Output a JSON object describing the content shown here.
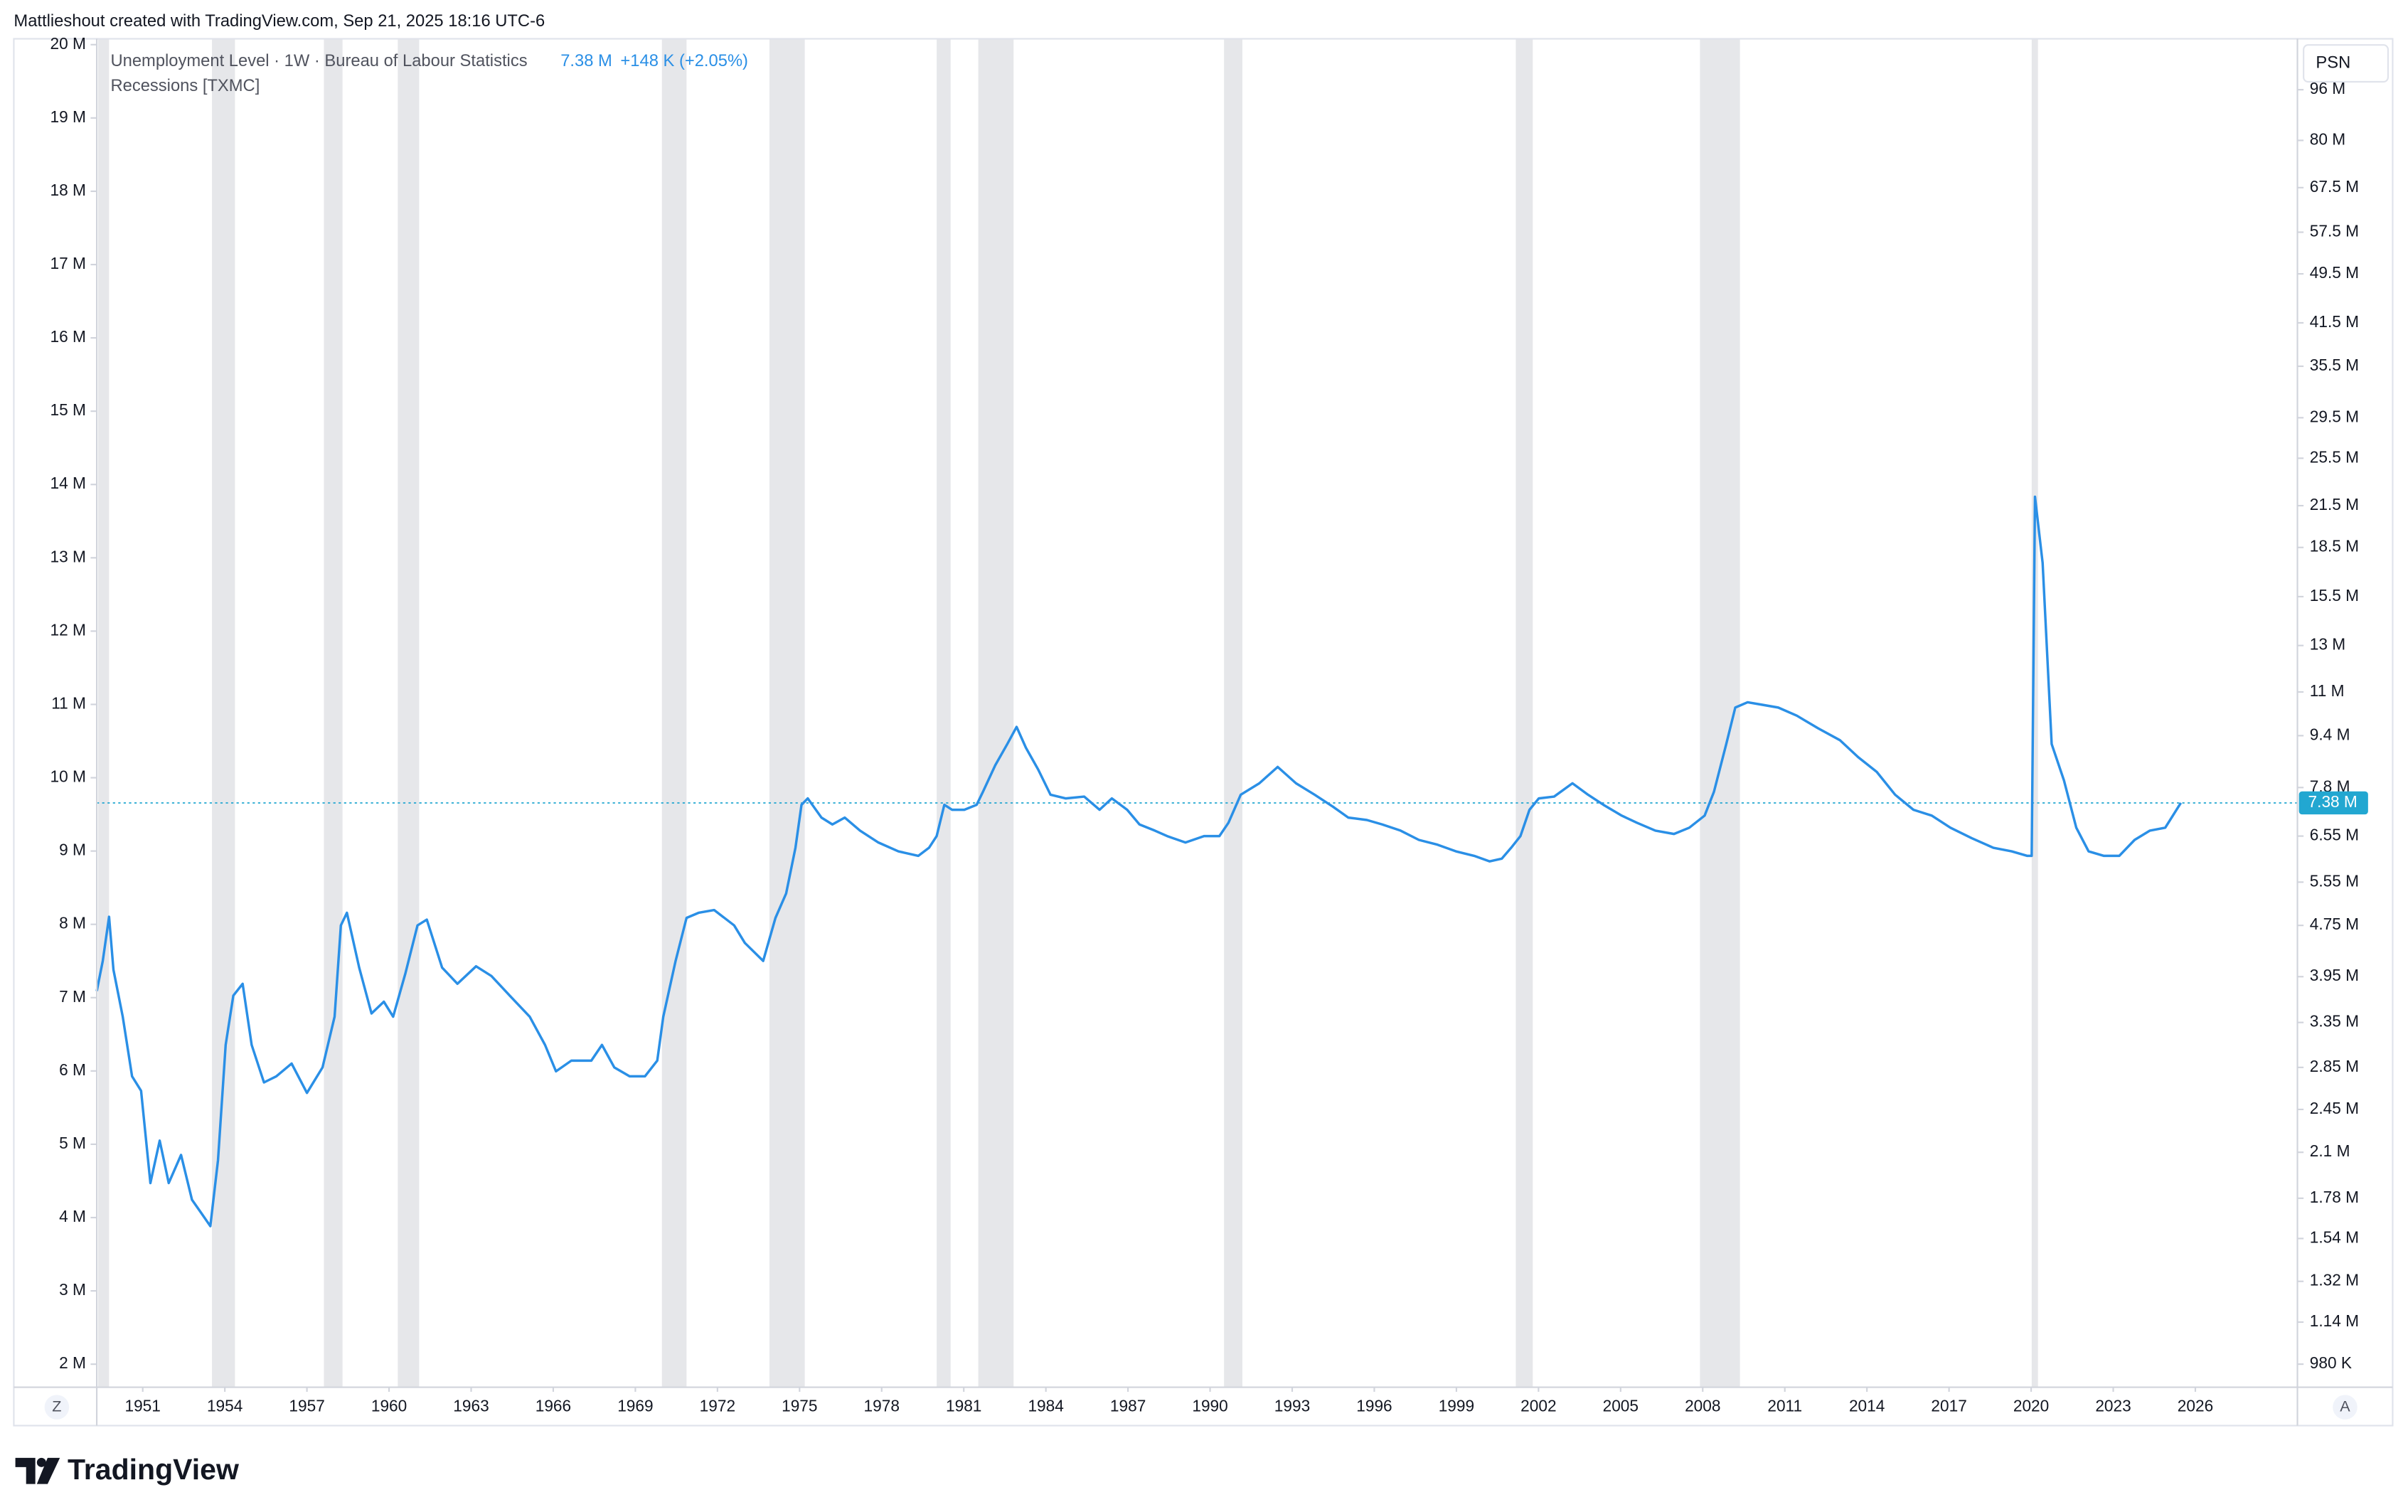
{
  "header": {
    "credit": "Mattlieshout created with TradingView.com, Sep 21, 2025 18:16 UTC-6",
    "logo": "TradingView"
  },
  "buttons": {
    "scale_mode": "PSN",
    "left_corner": "Z",
    "right_corner": "A"
  },
  "chart_data": {
    "type": "line",
    "log_scale": true,
    "grid": false,
    "change": "+148 K (+2.05%)",
    "last_value": {
      "value": 7.38,
      "label": "7.38 M",
      "color": "#22a7d1"
    },
    "x": [
      1949.32,
      1949.54,
      1949.77,
      1949.93,
      1950.27,
      1950.61,
      1950.94,
      1951.28,
      1951.62,
      1951.95,
      1952.4,
      1952.8,
      1953.13,
      1953.47,
      1953.75,
      1954.03,
      1954.31,
      1954.65,
      1954.98,
      1955.43,
      1955.88,
      1956.44,
      1957.0,
      1957.57,
      1958.01,
      1958.24,
      1958.46,
      1958.91,
      1959.36,
      1959.81,
      1960.15,
      1960.6,
      1961.04,
      1961.38,
      1961.94,
      1962.5,
      1963.18,
      1963.74,
      1964.41,
      1965.14,
      1965.7,
      1966.1,
      1966.66,
      1967.39,
      1967.78,
      1968.23,
      1968.79,
      1969.35,
      1969.8,
      1970.02,
      1970.47,
      1970.87,
      1971.31,
      1971.88,
      1972.61,
      1973.0,
      1973.67,
      1974.12,
      1974.51,
      1974.85,
      1975.07,
      1975.3,
      1975.8,
      1976.2,
      1976.65,
      1977.21,
      1977.88,
      1978.61,
      1979.34,
      1979.73,
      1980.01,
      1980.29,
      1980.57,
      1981.02,
      1981.47,
      1981.7,
      1982.15,
      1982.59,
      1982.93,
      1983.27,
      1983.72,
      1984.17,
      1984.73,
      1985.4,
      1985.96,
      1986.41,
      1986.97,
      1987.42,
      1987.98,
      1988.43,
      1989.1,
      1989.78,
      1990.34,
      1990.67,
      1991.12,
      1991.8,
      1992.47,
      1993.14,
      1993.82,
      1994.49,
      1995.05,
      1995.73,
      1996.29,
      1996.96,
      1997.63,
      1998.31,
      1998.98,
      1999.65,
      2000.21,
      2000.66,
      2001.0,
      2001.34,
      2001.67,
      2002.01,
      2002.57,
      2003.24,
      2003.81,
      2004.37,
      2005.04,
      2005.6,
      2006.27,
      2006.95,
      2007.51,
      2008.07,
      2008.41,
      2008.86,
      2009.19,
      2009.64,
      2010.2,
      2010.76,
      2011.44,
      2012.22,
      2013.01,
      2013.68,
      2014.36,
      2015.03,
      2015.7,
      2016.37,
      2017.05,
      2017.83,
      2018.62,
      2019.29,
      2019.86,
      2020.02,
      2020.14,
      2020.42,
      2020.75,
      2021.2,
      2021.65,
      2022.1,
      2022.66,
      2023.22,
      2023.78,
      2024.34,
      2024.9,
      2025.47
    ],
    "series": [
      {
        "name": "Unemployment Level · 1W · Bureau of Labour Statistics",
        "color": "#2a8fe6",
        "values": [
          3.75,
          4.18,
          4.9,
          4.05,
          3.42,
          2.76,
          2.62,
          1.88,
          2.19,
          1.88,
          2.08,
          1.77,
          1.69,
          1.61,
          2.04,
          3.09,
          3.69,
          3.85,
          3.09,
          2.7,
          2.76,
          2.89,
          2.6,
          2.85,
          3.42,
          4.75,
          4.97,
          4.08,
          3.46,
          3.61,
          3.42,
          4.0,
          4.75,
          4.85,
          4.08,
          3.85,
          4.1,
          3.96,
          3.69,
          3.42,
          3.09,
          2.81,
          2.92,
          2.92,
          3.09,
          2.85,
          2.76,
          2.76,
          2.92,
          3.42,
          4.18,
          4.88,
          4.97,
          5.02,
          4.75,
          4.46,
          4.18,
          4.88,
          5.33,
          6.28,
          7.33,
          7.5,
          7.0,
          6.83,
          7.0,
          6.68,
          6.4,
          6.2,
          6.1,
          6.28,
          6.55,
          7.33,
          7.2,
          7.2,
          7.33,
          7.68,
          8.45,
          9.12,
          9.7,
          9.0,
          8.32,
          7.6,
          7.5,
          7.55,
          7.2,
          7.5,
          7.2,
          6.83,
          6.68,
          6.55,
          6.4,
          6.55,
          6.55,
          6.87,
          7.6,
          7.92,
          8.4,
          7.92,
          7.6,
          7.28,
          7.0,
          6.94,
          6.83,
          6.68,
          6.46,
          6.35,
          6.2,
          6.1,
          5.98,
          6.04,
          6.28,
          6.55,
          7.2,
          7.5,
          7.55,
          7.92,
          7.6,
          7.33,
          7.05,
          6.87,
          6.68,
          6.6,
          6.75,
          7.05,
          7.68,
          9.12,
          10.4,
          10.6,
          10.5,
          10.4,
          10.1,
          9.65,
          9.25,
          8.7,
          8.25,
          7.6,
          7.2,
          7.05,
          6.75,
          6.5,
          6.28,
          6.2,
          6.1,
          6.1,
          22.2,
          17.5,
          9.12,
          8.0,
          6.75,
          6.2,
          6.1,
          6.1,
          6.46,
          6.68,
          6.75,
          7.38
        ]
      }
    ],
    "recessions": {
      "name": "Recessions [TXMC]",
      "color": "#e6e7ea",
      "periods": [
        [
          1949.37,
          1949.77
        ],
        [
          1953.53,
          1954.37
        ],
        [
          1957.62,
          1958.3
        ],
        [
          1960.32,
          1961.1
        ],
        [
          1969.97,
          1970.87
        ],
        [
          1973.9,
          1975.19
        ],
        [
          1980.01,
          1980.52
        ],
        [
          1981.53,
          1982.82
        ],
        [
          1990.51,
          1991.18
        ],
        [
          2001.17,
          2001.79
        ],
        [
          2007.9,
          2009.36
        ],
        [
          2020.02,
          2020.25
        ]
      ]
    },
    "xlim": [
      1949.32,
      2029.73
    ],
    "xticks": [
      1951,
      1954,
      1957,
      1960,
      1963,
      1966,
      1969,
      1972,
      1975,
      1978,
      1981,
      1984,
      1987,
      1990,
      1993,
      1996,
      1999,
      2002,
      2005,
      2008,
      2011,
      2014,
      2017,
      2020,
      2023,
      2026
    ],
    "ylim": [
      0.902,
      115.3
    ],
    "yticks": [
      {
        "value": 96,
        "label": "96 M"
      },
      {
        "value": 80,
        "label": "80 M"
      },
      {
        "value": 67.5,
        "label": "67.5 M"
      },
      {
        "value": 57.5,
        "label": "57.5 M"
      },
      {
        "value": 49.5,
        "label": "49.5 M"
      },
      {
        "value": 41.5,
        "label": "41.5 M"
      },
      {
        "value": 35.5,
        "label": "35.5 M"
      },
      {
        "value": 29.5,
        "label": "29.5 M"
      },
      {
        "value": 25.5,
        "label": "25.5 M"
      },
      {
        "value": 21.5,
        "label": "21.5 M"
      },
      {
        "value": 18.5,
        "label": "18.5 M"
      },
      {
        "value": 15.5,
        "label": "15.5 M"
      },
      {
        "value": 13,
        "label": "13 M"
      },
      {
        "value": 11,
        "label": "11 M"
      },
      {
        "value": 9.4,
        "label": "9.4 M"
      },
      {
        "value": 7.8,
        "label": "7.8 M"
      },
      {
        "value": 6.55,
        "label": "6.55 M"
      },
      {
        "value": 5.55,
        "label": "5.55 M"
      },
      {
        "value": 4.75,
        "label": "4.75 M"
      },
      {
        "value": 3.95,
        "label": "3.95 M"
      },
      {
        "value": 3.35,
        "label": "3.35 M"
      },
      {
        "value": 2.85,
        "label": "2.85 M"
      },
      {
        "value": 2.45,
        "label": "2.45 M"
      },
      {
        "value": 2.1,
        "label": "2.1 M"
      },
      {
        "value": 1.78,
        "label": "1.78 M"
      },
      {
        "value": 1.54,
        "label": "1.54 M"
      },
      {
        "value": 1.32,
        "label": "1.32 M"
      },
      {
        "value": 1.14,
        "label": "1.14 M"
      },
      {
        "value": 0.98,
        "label": "980 K"
      }
    ],
    "y2lim": [
      1.686,
      20.08
    ],
    "y2ticks": [
      {
        "value": 20,
        "label": "20 M"
      },
      {
        "value": 19,
        "label": "19 M"
      },
      {
        "value": 18,
        "label": "18 M"
      },
      {
        "value": 17,
        "label": "17 M"
      },
      {
        "value": 16,
        "label": "16 M"
      },
      {
        "value": 15,
        "label": "15 M"
      },
      {
        "value": 14,
        "label": "14 M"
      },
      {
        "value": 13,
        "label": "13 M"
      },
      {
        "value": 12,
        "label": "12 M"
      },
      {
        "value": 11,
        "label": "11 M"
      },
      {
        "value": 10,
        "label": "10 M"
      },
      {
        "value": 9,
        "label": "9 M"
      },
      {
        "value": 8,
        "label": "8 M"
      },
      {
        "value": 7,
        "label": "7 M"
      },
      {
        "value": 6,
        "label": "6 M"
      },
      {
        "value": 5,
        "label": "5 M"
      },
      {
        "value": 4,
        "label": "4 M"
      },
      {
        "value": 3,
        "label": "3 M"
      },
      {
        "value": 2,
        "label": "2 M"
      }
    ]
  }
}
